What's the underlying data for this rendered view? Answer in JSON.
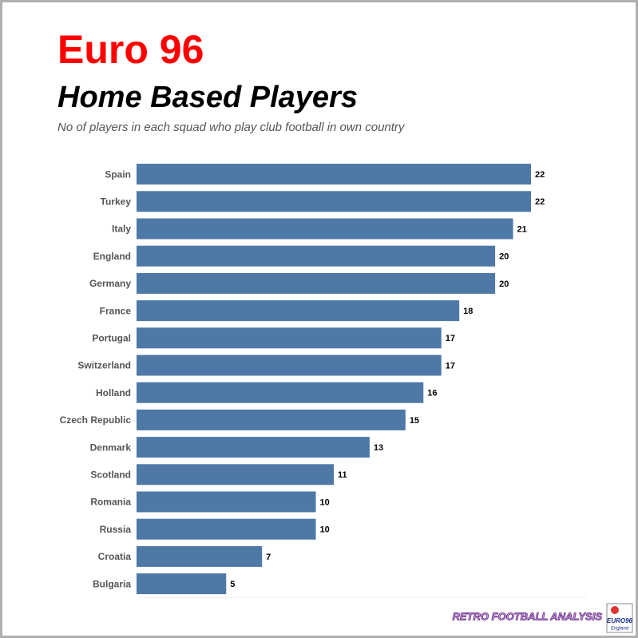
{
  "chart_data": {
    "type": "bar",
    "orientation": "horizontal",
    "title": "Euro 96",
    "subtitle": "Home Based Players",
    "caption": "No of players in each squad who play club football in own country",
    "categories": [
      "Spain",
      "Turkey",
      "Italy",
      "England",
      "Germany",
      "France",
      "Portugal",
      "Switzerland",
      "Holland",
      "Czech Republic",
      "Denmark",
      "Scotland",
      "Romania",
      "Russia",
      "Croatia",
      "Bulgaria"
    ],
    "values": [
      22,
      22,
      21,
      20,
      20,
      18,
      17,
      17,
      16,
      15,
      13,
      11,
      10,
      10,
      7,
      5
    ],
    "color": "#4e78a6",
    "footer": "RETRO FOOTBALL ANALYSIS",
    "logo": [
      "EURO96",
      "England"
    ]
  }
}
